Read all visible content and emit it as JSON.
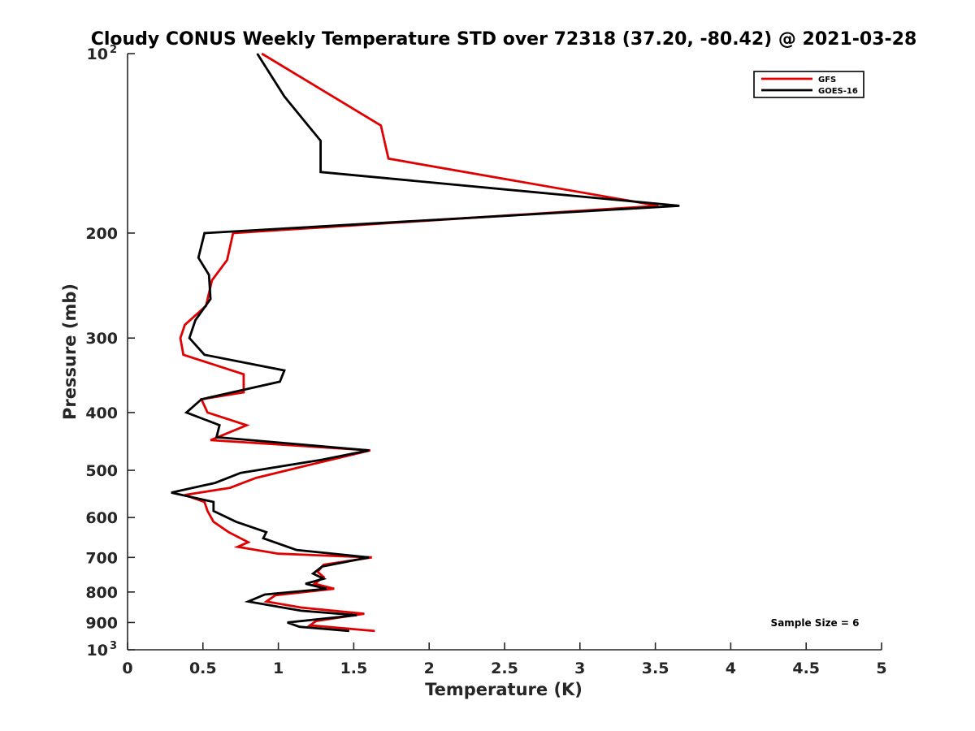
{
  "chart_data": {
    "type": "line",
    "title": "Cloudy CONUS Weekly Temperature STD over 72318 (37.20, -80.42) @ 2021-03-28",
    "xlabel": "Temperature (K)",
    "ylabel": "Pressure (mb)",
    "xlim": [
      0,
      5
    ],
    "ylim": [
      100,
      1000
    ],
    "yscale": "log",
    "y_reversed": true,
    "x_ticks": [
      0,
      0.5,
      1,
      1.5,
      2,
      2.5,
      3,
      3.5,
      4,
      4.5,
      5
    ],
    "x_tick_labels": [
      "0",
      "0.5",
      "1",
      "1.5",
      "2",
      "2.5",
      "3",
      "3.5",
      "4",
      "4.5",
      "5"
    ],
    "y_ticks": [
      200,
      300,
      400,
      500,
      600,
      700,
      800,
      900
    ],
    "y_tick_labels": [
      "200",
      "300",
      "400",
      "500",
      "600",
      "700",
      "800",
      "900"
    ],
    "y_end_labels": [
      {
        "value": 100,
        "base": "10",
        "exp": "2"
      },
      {
        "value": 1000,
        "base": "10",
        "exp": "3"
      }
    ],
    "grid": false,
    "legend_position": "top-right",
    "annotation": "Sample Size = 6",
    "series": [
      {
        "name": "GFS",
        "color": "#e00000",
        "x": [
          0.89,
          1.68,
          1.73,
          3.52,
          0.7,
          0.66,
          0.56,
          0.52,
          0.38,
          0.35,
          0.37,
          0.77,
          0.77,
          0.49,
          0.53,
          0.79,
          0.55,
          1.61,
          1.2,
          0.85,
          0.68,
          0.38,
          0.51,
          0.53,
          0.57,
          0.67,
          0.8,
          0.73,
          1.0,
          1.62,
          1.3,
          1.26,
          1.3,
          1.24,
          1.37,
          0.98,
          0.92,
          1.16,
          1.57,
          1.25,
          1.21,
          1.64
        ],
        "y": [
          100,
          132,
          150,
          180,
          200,
          222,
          240,
          265,
          285,
          300,
          320,
          345,
          370,
          380,
          400,
          420,
          445,
          463,
          490,
          515,
          535,
          550,
          565,
          585,
          610,
          635,
          660,
          672,
          690,
          700,
          720,
          740,
          755,
          775,
          790,
          810,
          830,
          850,
          870,
          895,
          910,
          930
        ]
      },
      {
        "name": "GOES-16",
        "color": "#000000",
        "x": [
          0.86,
          1.04,
          1.28,
          1.28,
          3.66,
          0.51,
          0.47,
          0.54,
          0.55,
          0.45,
          0.41,
          0.51,
          1.04,
          1.01,
          0.49,
          0.39,
          0.61,
          0.59,
          1.6,
          1.29,
          0.75,
          0.58,
          0.29,
          0.57,
          0.57,
          0.72,
          0.92,
          0.9,
          1.12,
          1.6,
          1.29,
          1.23,
          1.3,
          1.18,
          1.32,
          0.91,
          0.8,
          1.15,
          1.52,
          1.06,
          1.14,
          1.47
        ],
        "y": [
          100,
          118,
          140,
          158,
          180,
          200,
          220,
          235,
          258,
          280,
          300,
          320,
          340,
          355,
          380,
          400,
          420,
          440,
          463,
          480,
          505,
          525,
          545,
          565,
          585,
          610,
          635,
          650,
          680,
          700,
          725,
          745,
          760,
          775,
          790,
          808,
          830,
          860,
          875,
          900,
          915,
          930
        ]
      }
    ]
  }
}
